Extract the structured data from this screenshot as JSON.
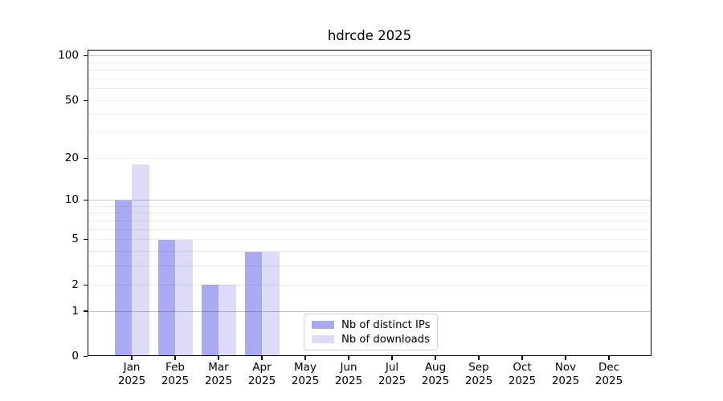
{
  "chart_data": {
    "type": "bar",
    "title": "hdrcde 2025",
    "categories": [
      "Jan",
      "Feb",
      "Mar",
      "Apr",
      "May",
      "Jun",
      "Jul",
      "Aug",
      "Sep",
      "Oct",
      "Nov",
      "Dec"
    ],
    "category_year": "2025",
    "series": [
      {
        "name": "Nb of distinct IPs",
        "color": "#a9a9f4",
        "values": [
          10,
          5,
          2,
          4,
          0,
          0,
          0,
          0,
          0,
          0,
          0,
          0
        ]
      },
      {
        "name": "Nb of downloads",
        "color": "#dcdcf9",
        "values": [
          18,
          5,
          2,
          4,
          0,
          0,
          0,
          0,
          0,
          0,
          0,
          0
        ]
      }
    ],
    "xlabel": "",
    "ylabel": "",
    "yscale": "log1p",
    "ylim": [
      0,
      110
    ],
    "yticks": [
      0,
      1,
      2,
      5,
      10,
      20,
      50,
      100
    ],
    "ygrid_major": [
      1,
      10,
      100
    ],
    "ygrid_minor": [
      2,
      3,
      4,
      5,
      6,
      7,
      8,
      9,
      20,
      30,
      40,
      50,
      60,
      70,
      80,
      90
    ],
    "grid": "on",
    "legend_position": "inside lower-center",
    "background_color": "#ffffff",
    "axis_color": "#000000"
  }
}
